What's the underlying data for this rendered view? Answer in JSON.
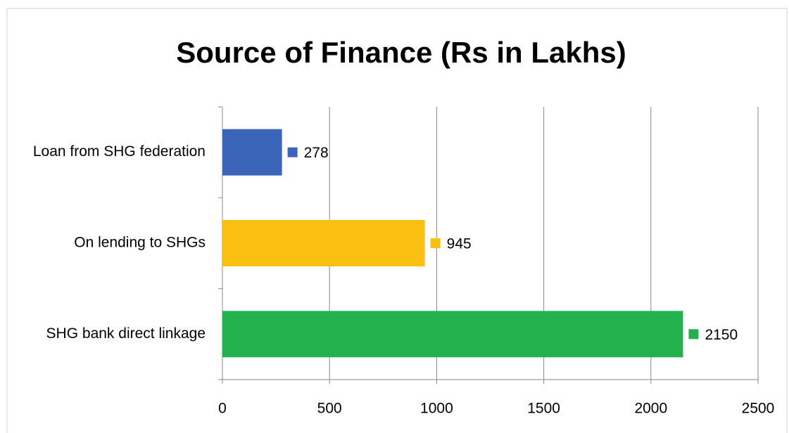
{
  "chart_data": {
    "type": "bar",
    "orientation": "horizontal",
    "title": "Source of Finance (Rs in Lakhs)",
    "categories": [
      "Loan from SHG federation",
      "On lending to SHGs",
      "SHG bank direct linkage"
    ],
    "values": [
      278,
      945,
      2150
    ],
    "colors": [
      "#3a65b8",
      "#fbbf10",
      "#22b14c"
    ],
    "xlim": [
      0,
      2500
    ],
    "xticks": [
      0,
      500,
      1000,
      1500,
      2000,
      2500
    ],
    "grid": true
  }
}
